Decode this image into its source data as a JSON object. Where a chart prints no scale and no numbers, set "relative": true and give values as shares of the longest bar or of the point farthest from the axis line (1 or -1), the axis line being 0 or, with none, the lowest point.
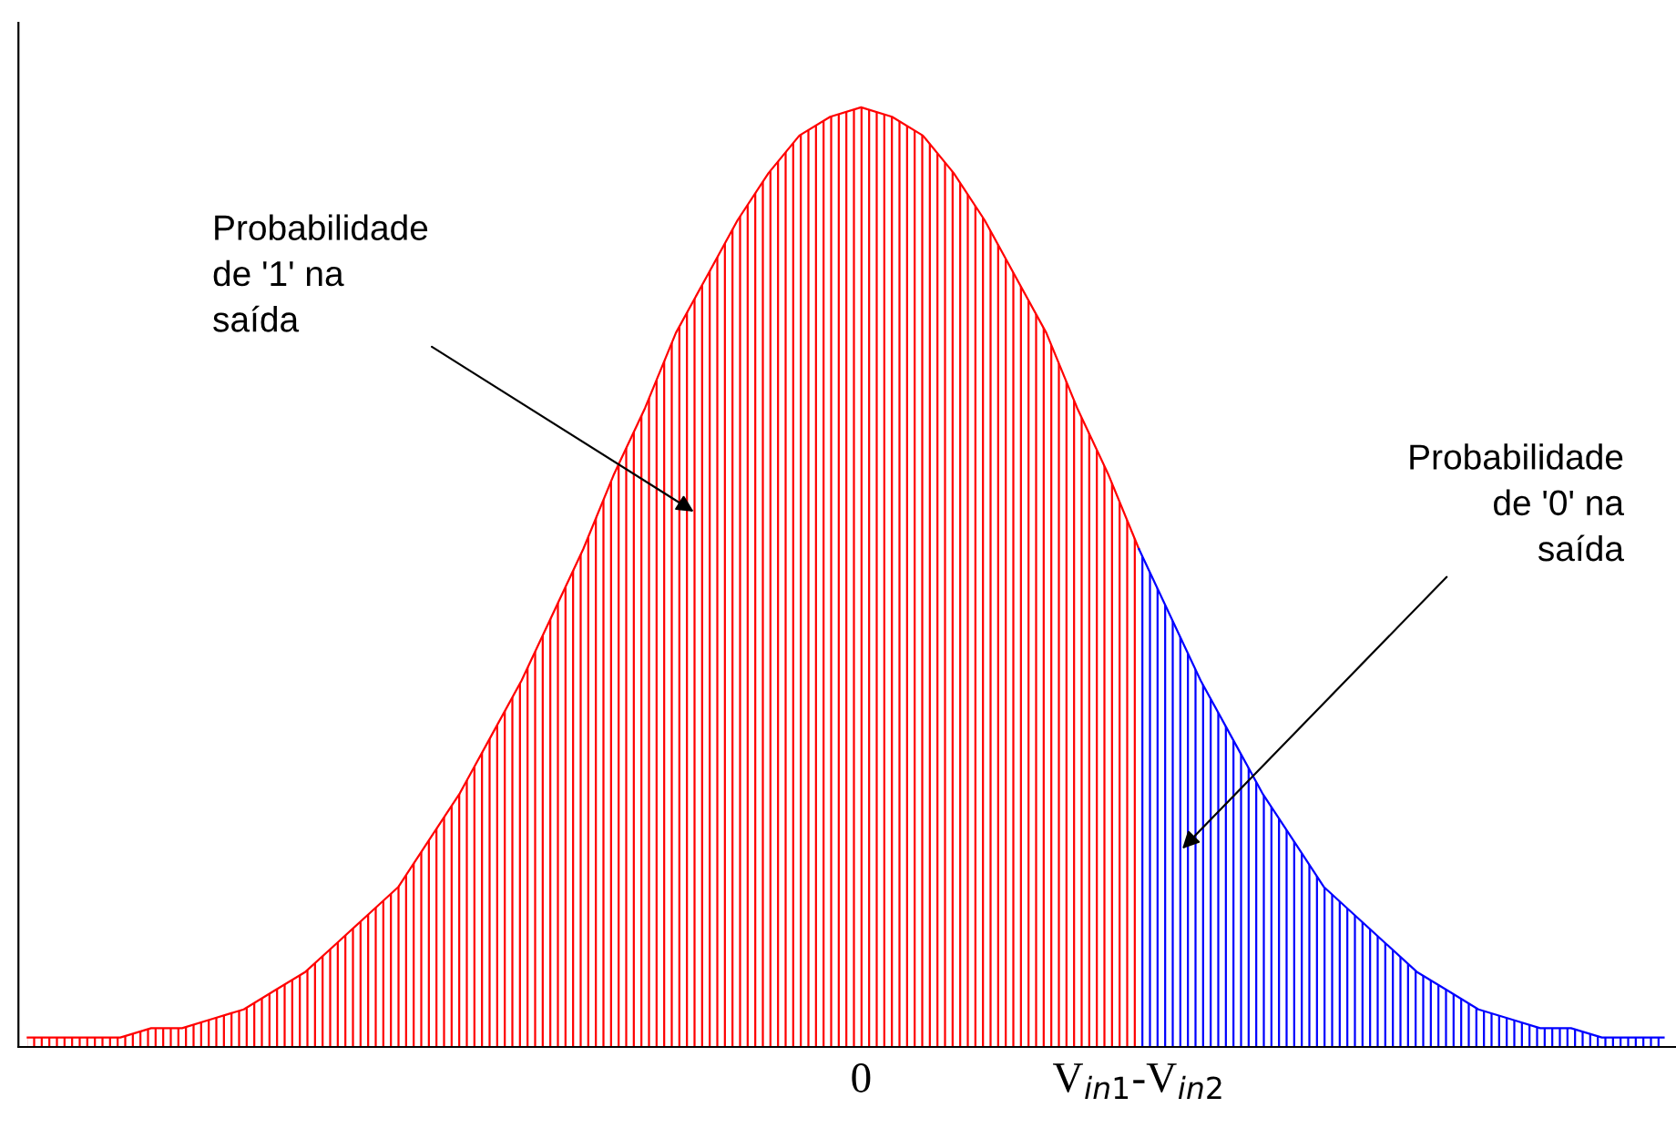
{
  "chart_data": {
    "type": "area",
    "relative": true,
    "categories": [
      null,
      null,
      null,
      null,
      null,
      null,
      null,
      null,
      null,
      null,
      null,
      null,
      null,
      null,
      null,
      null,
      null,
      null,
      null,
      null,
      null,
      null,
      null,
      null,
      null,
      null,
      null,
      "0",
      null,
      null,
      null,
      null,
      null,
      null,
      null,
      null,
      "V$_{in1}$-V$_{in2}$",
      null,
      null,
      null,
      null,
      null,
      null,
      null,
      null,
      null,
      null,
      null,
      null,
      null,
      null,
      null,
      null,
      null
    ],
    "series": [
      {
        "color": "#ff0000",
        "values": [
          0.01,
          0.01,
          0.01,
          0.01,
          0.02,
          0.02,
          0.03,
          0.04,
          0.06,
          0.08,
          0.11,
          0.14,
          0.17,
          0.22,
          0.27,
          0.33,
          0.39,
          0.46,
          0.53,
          0.61,
          0.68,
          0.76,
          0.82,
          0.88,
          0.93,
          0.97,
          0.99,
          1,
          0.99,
          0.97,
          0.93,
          0.88,
          0.82,
          0.76,
          0.68,
          0.61,
          0.53,
          null,
          null,
          null,
          null,
          null,
          null,
          null,
          null,
          null,
          null,
          null,
          null,
          null,
          null,
          null,
          null,
          null
        ]
      },
      {
        "color": "#0000ff",
        "values": [
          null,
          null,
          null,
          null,
          null,
          null,
          null,
          null,
          null,
          null,
          null,
          null,
          null,
          null,
          null,
          null,
          null,
          null,
          null,
          null,
          null,
          null,
          null,
          null,
          null,
          null,
          null,
          null,
          null,
          null,
          null,
          null,
          null,
          null,
          null,
          null,
          0.53,
          0.46,
          0.39,
          0.33,
          0.27,
          0.22,
          0.17,
          0.14,
          0.11,
          0.08,
          0.06,
          0.04,
          0.03,
          0.02,
          0.02,
          0.01,
          0.01,
          0.01
        ]
      }
    ],
    "annotations": [
      "Probabilidade\nde '1' na\nsaída",
      "Probabilidade\nde '0' na\nsaída"
    ]
  }
}
